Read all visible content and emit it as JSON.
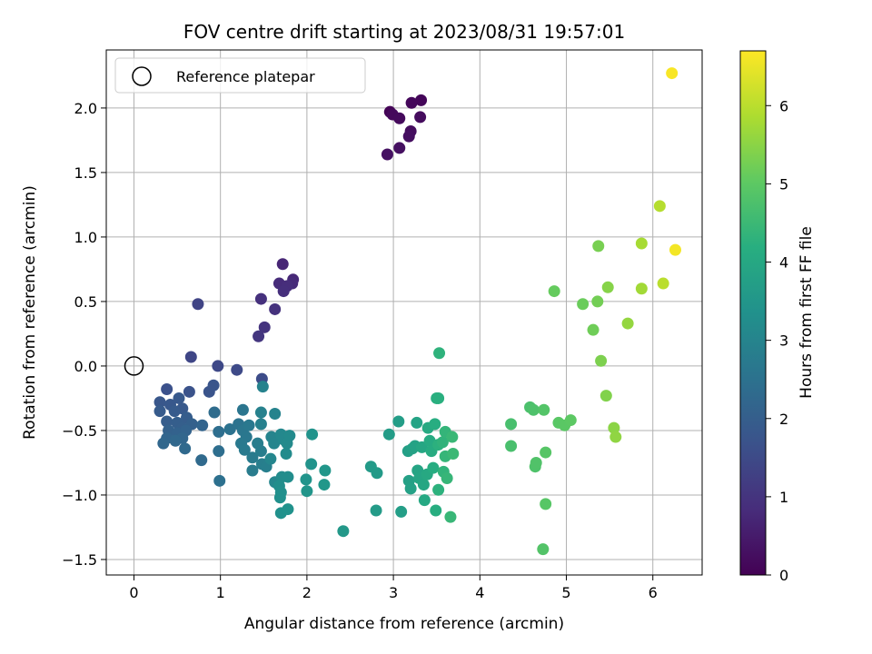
{
  "chart_data": {
    "type": "scatter",
    "title": "FOV centre drift starting at 2023/08/31 19:57:01",
    "xlabel": "Angular distance from reference (arcmin)",
    "ylabel": "Rotation from reference (arcmin)",
    "xlim": [
      -0.32,
      6.57
    ],
    "ylim": [
      -1.62,
      2.45
    ],
    "xticks": [
      "0",
      "1",
      "2",
      "3",
      "4",
      "5",
      "6"
    ],
    "yticks": [
      "2.0",
      "1.5",
      "1.0",
      "0.5",
      "0.0",
      "−0.5",
      "−1.0",
      "−1.5"
    ],
    "xtick_values": [
      0,
      1,
      2,
      3,
      4,
      5,
      6
    ],
    "ytick_values": [
      2.0,
      1.5,
      1.0,
      0.5,
      0.0,
      -0.5,
      -1.0,
      -1.5
    ],
    "grid": true,
    "legend": {
      "position": "top-left",
      "entries": [
        "Reference platepar"
      ]
    },
    "reference_point": {
      "x": 0,
      "y": 0
    },
    "colorbar": {
      "label": "Hours from first FF file",
      "range": [
        0,
        6.7
      ],
      "ticks": [
        "0",
        "1",
        "2",
        "3",
        "4",
        "5",
        "6"
      ],
      "tick_values": [
        0,
        1,
        2,
        3,
        4,
        5,
        6
      ],
      "colormap": "viridis"
    },
    "points": [
      {
        "x": 2.96,
        "y": 1.97,
        "h": 0.05
      },
      {
        "x": 3.32,
        "y": 2.06,
        "h": 0.1
      },
      {
        "x": 3.21,
        "y": 2.04,
        "h": 0.12
      },
      {
        "x": 2.99,
        "y": 1.95,
        "h": 0.15
      },
      {
        "x": 3.07,
        "y": 1.92,
        "h": 0.18
      },
      {
        "x": 3.31,
        "y": 1.93,
        "h": 0.2
      },
      {
        "x": 3.2,
        "y": 1.82,
        "h": 0.22
      },
      {
        "x": 3.18,
        "y": 1.78,
        "h": 0.25
      },
      {
        "x": 3.07,
        "y": 1.69,
        "h": 0.28
      },
      {
        "x": 2.93,
        "y": 1.64,
        "h": 0.3
      },
      {
        "x": 1.72,
        "y": 0.79,
        "h": 0.7
      },
      {
        "x": 1.84,
        "y": 0.67,
        "h": 0.75
      },
      {
        "x": 1.83,
        "y": 0.64,
        "h": 0.8
      },
      {
        "x": 1.68,
        "y": 0.64,
        "h": 0.82
      },
      {
        "x": 1.77,
        "y": 0.62,
        "h": 0.85
      },
      {
        "x": 1.73,
        "y": 0.58,
        "h": 0.88
      },
      {
        "x": 1.47,
        "y": 0.52,
        "h": 0.92
      },
      {
        "x": 1.63,
        "y": 0.44,
        "h": 0.95
      },
      {
        "x": 1.51,
        "y": 0.3,
        "h": 1.0
      },
      {
        "x": 1.44,
        "y": 0.23,
        "h": 1.05
      },
      {
        "x": 0.74,
        "y": 0.48,
        "h": 1.35
      },
      {
        "x": 0.66,
        "y": 0.07,
        "h": 1.4
      },
      {
        "x": 0.97,
        "y": 0.0,
        "h": 1.45
      },
      {
        "x": 1.19,
        "y": -0.03,
        "h": 1.5
      },
      {
        "x": 1.48,
        "y": -0.1,
        "h": 1.55
      },
      {
        "x": 0.38,
        "y": -0.18,
        "h": 1.65
      },
      {
        "x": 0.64,
        "y": -0.2,
        "h": 1.7
      },
      {
        "x": 0.87,
        "y": -0.2,
        "h": 1.72
      },
      {
        "x": 0.92,
        "y": -0.15,
        "h": 1.75
      },
      {
        "x": 0.3,
        "y": -0.28,
        "h": 1.8
      },
      {
        "x": 0.42,
        "y": -0.3,
        "h": 1.82
      },
      {
        "x": 0.52,
        "y": -0.25,
        "h": 1.85
      },
      {
        "x": 0.56,
        "y": -0.33,
        "h": 1.87
      },
      {
        "x": 0.3,
        "y": -0.35,
        "h": 1.9
      },
      {
        "x": 0.47,
        "y": -0.35,
        "h": 1.92
      },
      {
        "x": 0.61,
        "y": -0.4,
        "h": 1.95
      },
      {
        "x": 0.38,
        "y": -0.43,
        "h": 1.97
      },
      {
        "x": 0.5,
        "y": -0.44,
        "h": 2.0
      },
      {
        "x": 0.56,
        "y": -0.48,
        "h": 2.02
      },
      {
        "x": 0.67,
        "y": -0.45,
        "h": 2.05
      },
      {
        "x": 0.4,
        "y": -0.5,
        "h": 2.07
      },
      {
        "x": 0.5,
        "y": -0.52,
        "h": 2.1
      },
      {
        "x": 0.6,
        "y": -0.5,
        "h": 2.12
      },
      {
        "x": 0.79,
        "y": -0.46,
        "h": 2.15
      },
      {
        "x": 0.38,
        "y": -0.56,
        "h": 2.17
      },
      {
        "x": 0.56,
        "y": -0.56,
        "h": 2.2
      },
      {
        "x": 0.34,
        "y": -0.6,
        "h": 2.22
      },
      {
        "x": 0.48,
        "y": -0.58,
        "h": 2.25
      },
      {
        "x": 0.59,
        "y": -0.64,
        "h": 2.27
      },
      {
        "x": 0.78,
        "y": -0.73,
        "h": 2.3
      },
      {
        "x": 0.93,
        "y": -0.36,
        "h": 2.35
      },
      {
        "x": 0.98,
        "y": -0.51,
        "h": 2.4
      },
      {
        "x": 0.98,
        "y": -0.66,
        "h": 2.42
      },
      {
        "x": 0.99,
        "y": -0.89,
        "h": 2.45
      },
      {
        "x": 1.11,
        "y": -0.49,
        "h": 2.5
      },
      {
        "x": 1.21,
        "y": -0.45,
        "h": 2.55
      },
      {
        "x": 1.26,
        "y": -0.34,
        "h": 2.6
      },
      {
        "x": 1.26,
        "y": -0.5,
        "h": 2.62
      },
      {
        "x": 1.3,
        "y": -0.55,
        "h": 2.65
      },
      {
        "x": 1.33,
        "y": -0.46,
        "h": 2.67
      },
      {
        "x": 1.24,
        "y": -0.6,
        "h": 2.7
      },
      {
        "x": 1.28,
        "y": -0.65,
        "h": 2.72
      },
      {
        "x": 1.37,
        "y": -0.71,
        "h": 2.75
      },
      {
        "x": 1.37,
        "y": -0.81,
        "h": 2.77
      },
      {
        "x": 1.43,
        "y": -0.6,
        "h": 2.8
      },
      {
        "x": 1.47,
        "y": -0.66,
        "h": 2.82
      },
      {
        "x": 1.48,
        "y": -0.76,
        "h": 2.85
      },
      {
        "x": 1.53,
        "y": -0.78,
        "h": 2.87
      },
      {
        "x": 1.47,
        "y": -0.45,
        "h": 2.9
      },
      {
        "x": 1.47,
        "y": -0.36,
        "h": 2.92
      },
      {
        "x": 1.49,
        "y": -0.16,
        "h": 2.95
      },
      {
        "x": 1.63,
        "y": -0.37,
        "h": 2.97
      },
      {
        "x": 1.59,
        "y": -0.55,
        "h": 3.0
      },
      {
        "x": 1.62,
        "y": -0.6,
        "h": 3.02
      },
      {
        "x": 1.58,
        "y": -0.72,
        "h": 3.05
      },
      {
        "x": 1.63,
        "y": -0.9,
        "h": 3.07
      },
      {
        "x": 1.7,
        "y": -0.53,
        "h": 3.1
      },
      {
        "x": 1.73,
        "y": -0.57,
        "h": 3.12
      },
      {
        "x": 1.77,
        "y": -0.6,
        "h": 3.15
      },
      {
        "x": 1.8,
        "y": -0.54,
        "h": 3.17
      },
      {
        "x": 1.76,
        "y": -0.68,
        "h": 3.2
      },
      {
        "x": 1.71,
        "y": -0.86,
        "h": 3.22
      },
      {
        "x": 1.78,
        "y": -0.86,
        "h": 3.25
      },
      {
        "x": 1.68,
        "y": -0.93,
        "h": 3.27
      },
      {
        "x": 1.7,
        "y": -0.98,
        "h": 3.3
      },
      {
        "x": 1.69,
        "y": -1.02,
        "h": 3.32
      },
      {
        "x": 1.7,
        "y": -1.14,
        "h": 3.35
      },
      {
        "x": 1.78,
        "y": -1.11,
        "h": 3.37
      },
      {
        "x": 2.06,
        "y": -0.53,
        "h": 3.4
      },
      {
        "x": 2.05,
        "y": -0.76,
        "h": 3.42
      },
      {
        "x": 1.99,
        "y": -0.88,
        "h": 3.45
      },
      {
        "x": 2.0,
        "y": -0.97,
        "h": 3.47
      },
      {
        "x": 2.21,
        "y": -0.81,
        "h": 3.5
      },
      {
        "x": 2.2,
        "y": -0.92,
        "h": 3.52
      },
      {
        "x": 2.42,
        "y": -1.28,
        "h": 3.55
      },
      {
        "x": 2.74,
        "y": -0.78,
        "h": 3.6
      },
      {
        "x": 2.81,
        "y": -0.83,
        "h": 3.62
      },
      {
        "x": 2.8,
        "y": -1.12,
        "h": 3.65
      },
      {
        "x": 2.95,
        "y": -0.53,
        "h": 3.67
      },
      {
        "x": 3.06,
        "y": -0.43,
        "h": 3.7
      },
      {
        "x": 3.09,
        "y": -1.13,
        "h": 3.72
      },
      {
        "x": 3.17,
        "y": -0.66,
        "h": 3.75
      },
      {
        "x": 3.18,
        "y": -0.89,
        "h": 3.77
      },
      {
        "x": 3.2,
        "y": -0.95,
        "h": 3.8
      },
      {
        "x": 3.22,
        "y": -0.64,
        "h": 3.82
      },
      {
        "x": 3.25,
        "y": -0.62,
        "h": 3.85
      },
      {
        "x": 3.27,
        "y": -0.44,
        "h": 3.87
      },
      {
        "x": 3.28,
        "y": -0.81,
        "h": 3.9
      },
      {
        "x": 3.3,
        "y": -0.87,
        "h": 3.92
      },
      {
        "x": 3.33,
        "y": -0.63,
        "h": 3.95
      },
      {
        "x": 3.35,
        "y": -0.92,
        "h": 3.97
      },
      {
        "x": 3.36,
        "y": -1.04,
        "h": 4.0
      },
      {
        "x": 3.39,
        "y": -0.84,
        "h": 4.02
      },
      {
        "x": 3.4,
        "y": -0.48,
        "h": 4.05
      },
      {
        "x": 3.42,
        "y": -0.58,
        "h": 4.07
      },
      {
        "x": 3.44,
        "y": -0.66,
        "h": 4.1
      },
      {
        "x": 3.46,
        "y": -0.79,
        "h": 4.12
      },
      {
        "x": 3.48,
        "y": -0.45,
        "h": 4.15
      },
      {
        "x": 3.49,
        "y": -1.12,
        "h": 4.17
      },
      {
        "x": 3.5,
        "y": -0.25,
        "h": 4.2
      },
      {
        "x": 3.52,
        "y": -0.25,
        "h": 4.22
      },
      {
        "x": 3.52,
        "y": -0.61,
        "h": 4.25
      },
      {
        "x": 3.52,
        "y": -0.96,
        "h": 4.27
      },
      {
        "x": 3.53,
        "y": 0.1,
        "h": 4.3
      },
      {
        "x": 3.57,
        "y": -0.59,
        "h": 4.32
      },
      {
        "x": 3.58,
        "y": -0.82,
        "h": 4.35
      },
      {
        "x": 3.6,
        "y": -0.51,
        "h": 4.37
      },
      {
        "x": 3.6,
        "y": -0.7,
        "h": 4.4
      },
      {
        "x": 3.62,
        "y": -0.87,
        "h": 4.42
      },
      {
        "x": 3.66,
        "y": -1.17,
        "h": 4.45
      },
      {
        "x": 3.68,
        "y": -0.55,
        "h": 4.47
      },
      {
        "x": 3.69,
        "y": -0.68,
        "h": 4.5
      },
      {
        "x": 4.36,
        "y": -0.45,
        "h": 4.7
      },
      {
        "x": 4.36,
        "y": -0.62,
        "h": 4.72
      },
      {
        "x": 4.58,
        "y": -0.32,
        "h": 4.75
      },
      {
        "x": 4.62,
        "y": -0.34,
        "h": 4.77
      },
      {
        "x": 4.64,
        "y": -0.78,
        "h": 4.8
      },
      {
        "x": 4.65,
        "y": -0.75,
        "h": 4.82
      },
      {
        "x": 4.73,
        "y": -1.42,
        "h": 4.85
      },
      {
        "x": 4.74,
        "y": -0.34,
        "h": 4.87
      },
      {
        "x": 4.76,
        "y": -0.67,
        "h": 4.9
      },
      {
        "x": 4.76,
        "y": -1.07,
        "h": 4.92
      },
      {
        "x": 4.91,
        "y": -0.44,
        "h": 4.95
      },
      {
        "x": 4.98,
        "y": -0.46,
        "h": 4.97
      },
      {
        "x": 5.05,
        "y": -0.42,
        "h": 5.0
      },
      {
        "x": 4.86,
        "y": 0.58,
        "h": 5.1
      },
      {
        "x": 5.19,
        "y": 0.48,
        "h": 5.15
      },
      {
        "x": 5.31,
        "y": 0.28,
        "h": 5.2
      },
      {
        "x": 5.36,
        "y": 0.5,
        "h": 5.25
      },
      {
        "x": 5.37,
        "y": 0.93,
        "h": 5.3
      },
      {
        "x": 5.4,
        "y": 0.04,
        "h": 5.35
      },
      {
        "x": 5.46,
        "y": -0.23,
        "h": 5.4
      },
      {
        "x": 5.48,
        "y": 0.61,
        "h": 5.45
      },
      {
        "x": 5.55,
        "y": -0.48,
        "h": 5.5
      },
      {
        "x": 5.57,
        "y": -0.55,
        "h": 5.55
      },
      {
        "x": 5.71,
        "y": 0.33,
        "h": 5.6
      },
      {
        "x": 5.87,
        "y": 0.6,
        "h": 5.75
      },
      {
        "x": 5.87,
        "y": 0.95,
        "h": 5.8
      },
      {
        "x": 6.08,
        "y": 1.24,
        "h": 5.95
      },
      {
        "x": 6.12,
        "y": 0.64,
        "h": 6.0
      },
      {
        "x": 6.26,
        "y": 0.9,
        "h": 6.6
      },
      {
        "x": 6.22,
        "y": 2.27,
        "h": 6.65
      }
    ]
  }
}
